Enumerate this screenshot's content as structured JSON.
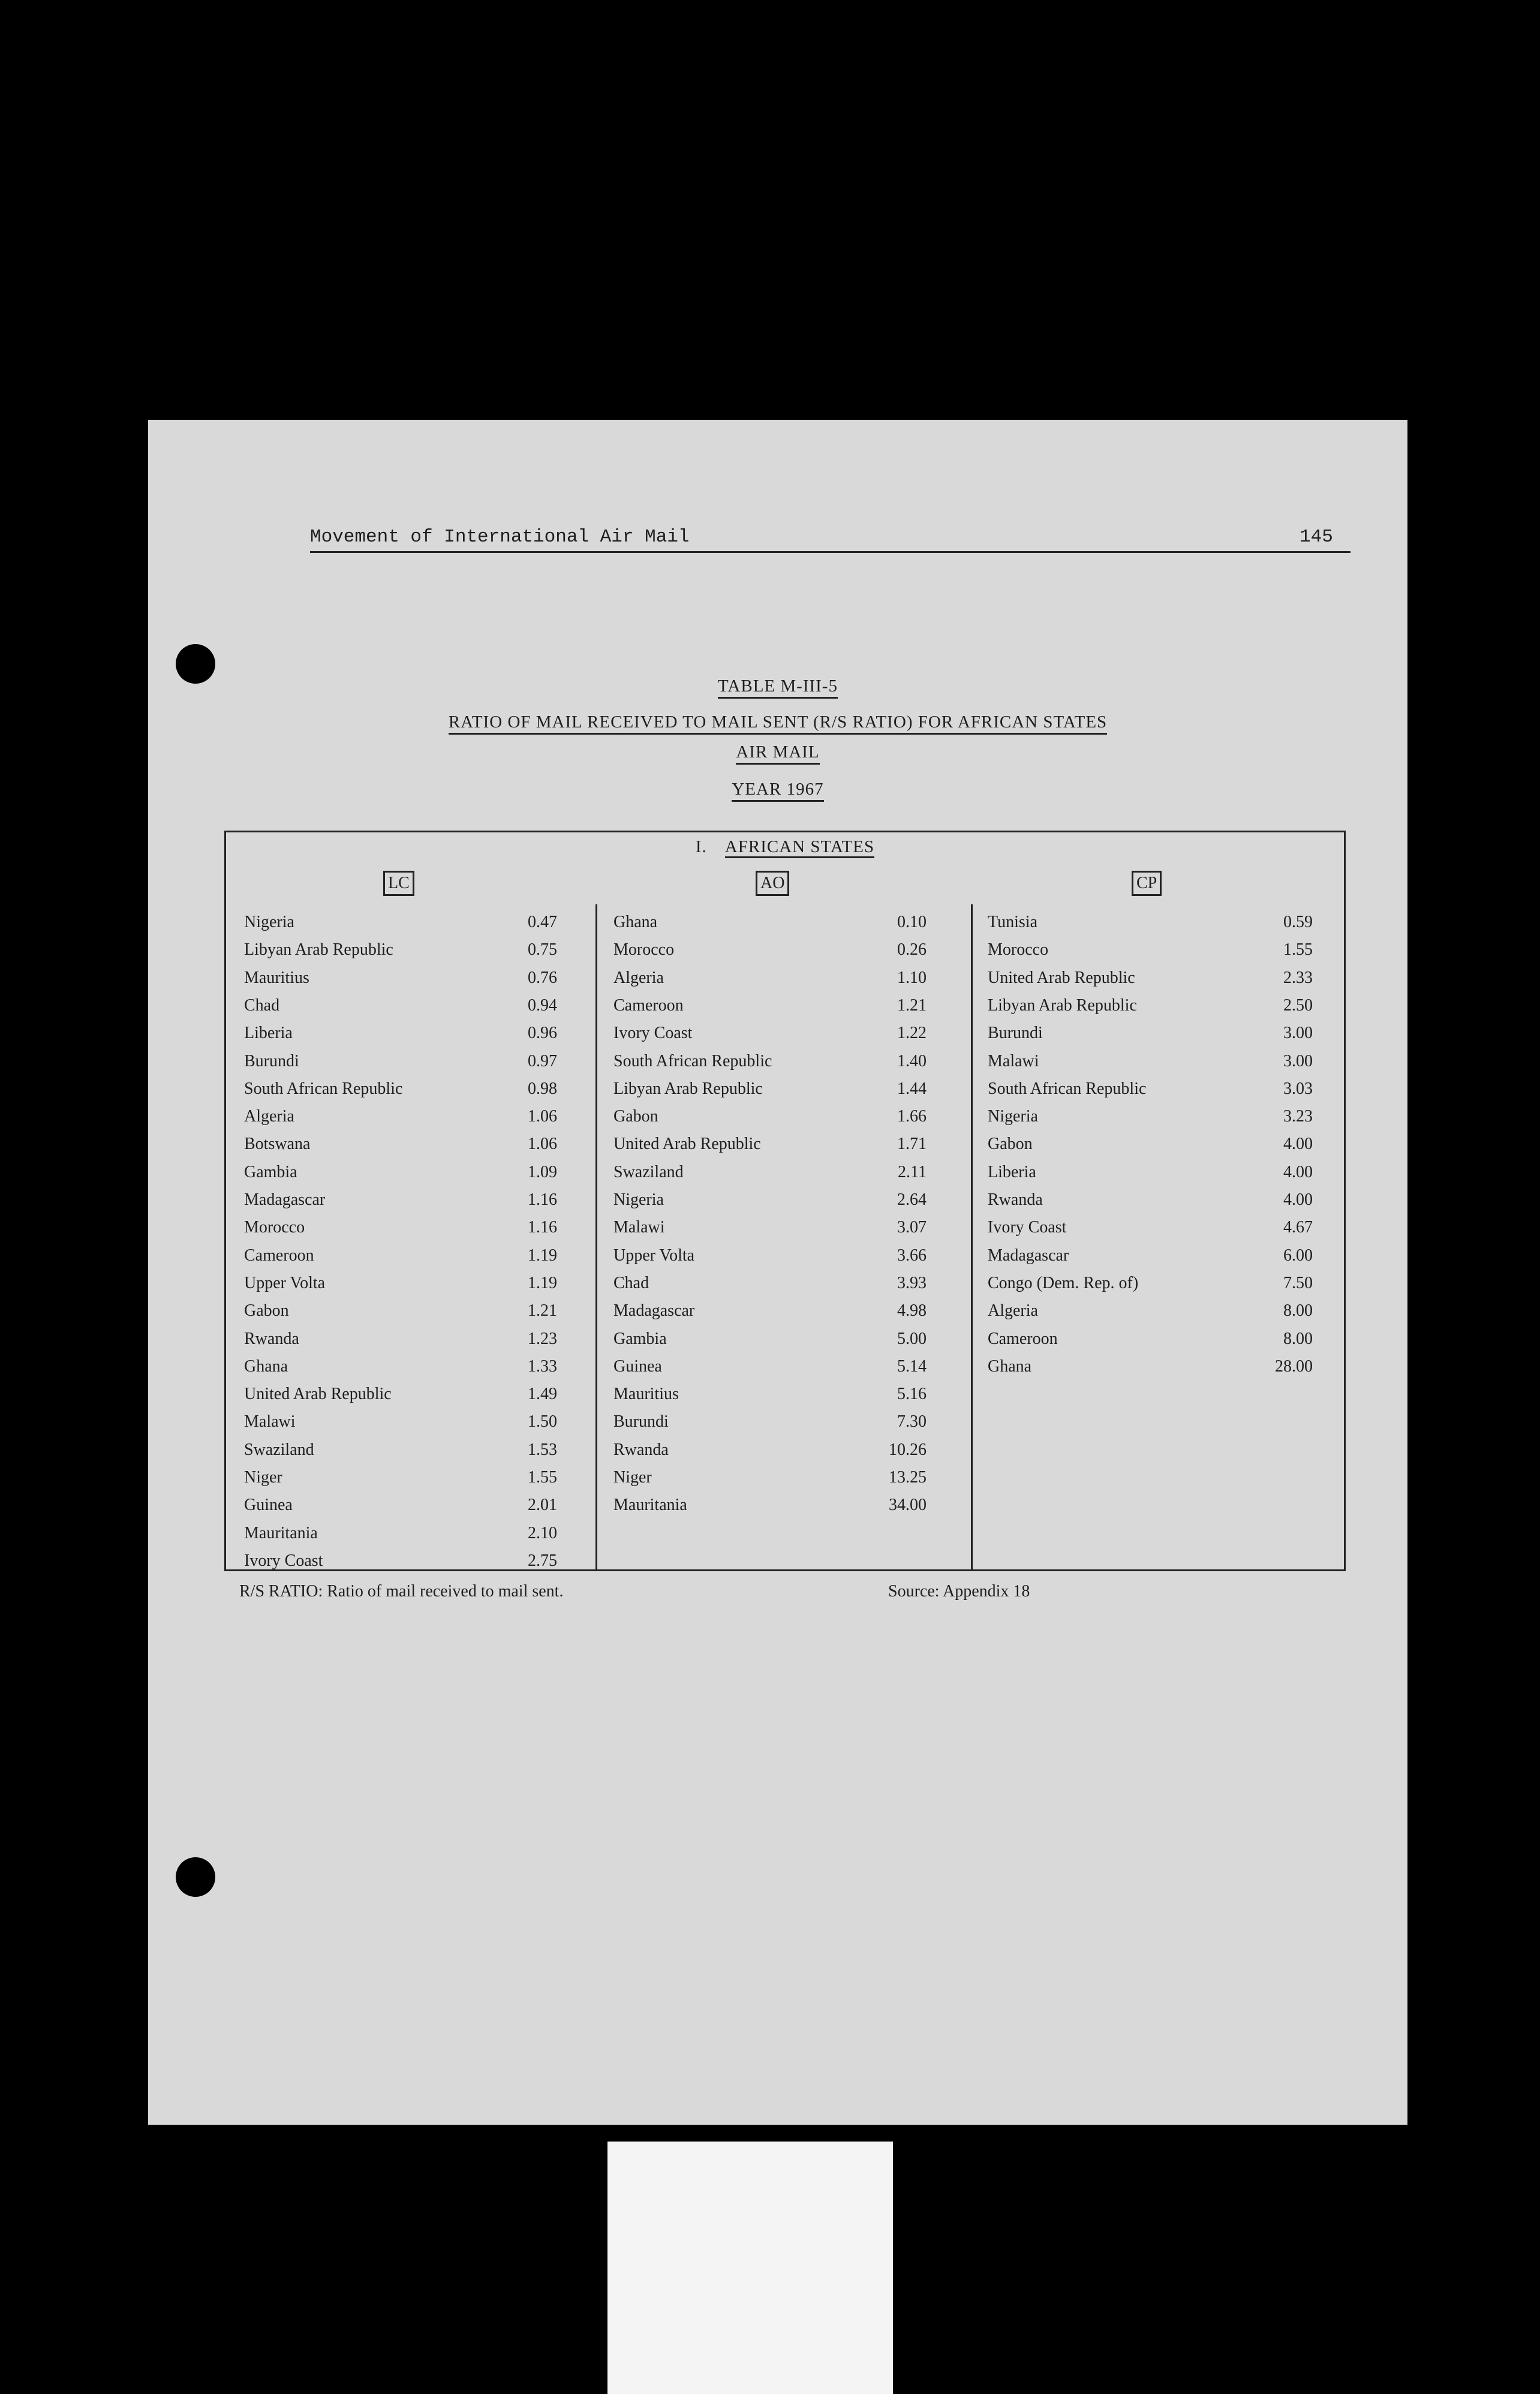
{
  "header": {
    "running_title": "Movement of International Air Mail",
    "page_number": "145"
  },
  "titles": {
    "table_id": "TABLE M-III-5",
    "subtitle": "RATIO OF MAIL RECEIVED TO MAIL SENT (R/S RATIO) FOR AFRICAN STATES",
    "mode": "AIR MAIL",
    "year": "YEAR 1967"
  },
  "table": {
    "section_number": "I.",
    "section_title": "AFRICAN STATES",
    "columns": [
      {
        "label": "LC",
        "rows": [
          [
            "Nigeria",
            "0.47"
          ],
          [
            "Libyan Arab Republic",
            "0.75"
          ],
          [
            "Mauritius",
            "0.76"
          ],
          [
            "Chad",
            "0.94"
          ],
          [
            "Liberia",
            "0.96"
          ],
          [
            "Burundi",
            "0.97"
          ],
          [
            "South African Republic",
            "0.98"
          ],
          [
            "Algeria",
            "1.06"
          ],
          [
            "Botswana",
            "1.06"
          ],
          [
            "Gambia",
            "1.09"
          ],
          [
            "Madagascar",
            "1.16"
          ],
          [
            "Morocco",
            "1.16"
          ],
          [
            "Cameroon",
            "1.19"
          ],
          [
            "Upper Volta",
            "1.19"
          ],
          [
            "Gabon",
            "1.21"
          ],
          [
            "Rwanda",
            "1.23"
          ],
          [
            "Ghana",
            "1.33"
          ],
          [
            "United Arab Republic",
            "1.49"
          ],
          [
            "Malawi",
            "1.50"
          ],
          [
            "Swaziland",
            "1.53"
          ],
          [
            "Niger",
            "1.55"
          ],
          [
            "Guinea",
            "2.01"
          ],
          [
            "Mauritania",
            "2.10"
          ],
          [
            "Ivory Coast",
            "2.75"
          ]
        ]
      },
      {
        "label": "AO",
        "rows": [
          [
            "Ghana",
            "0.10"
          ],
          [
            "Morocco",
            "0.26"
          ],
          [
            "Algeria",
            "1.10"
          ],
          [
            "Cameroon",
            "1.21"
          ],
          [
            "Ivory Coast",
            "1.22"
          ],
          [
            "South African Republic",
            "1.40"
          ],
          [
            "Libyan Arab Republic",
            "1.44"
          ],
          [
            "Gabon",
            "1.66"
          ],
          [
            "United Arab Republic",
            "1.71"
          ],
          [
            "Swaziland",
            "2.11"
          ],
          [
            "Nigeria",
            "2.64"
          ],
          [
            "Malawi",
            "3.07"
          ],
          [
            "Upper Volta",
            "3.66"
          ],
          [
            "Chad",
            "3.93"
          ],
          [
            "Madagascar",
            "4.98"
          ],
          [
            "Gambia",
            "5.00"
          ],
          [
            "Guinea",
            "5.14"
          ],
          [
            "Mauritius",
            "5.16"
          ],
          [
            "Burundi",
            "7.30"
          ],
          [
            "Rwanda",
            "10.26"
          ],
          [
            "Niger",
            "13.25"
          ],
          [
            "Mauritania",
            "34.00"
          ]
        ]
      },
      {
        "label": "CP",
        "rows": [
          [
            "Tunisia",
            "0.59"
          ],
          [
            "Morocco",
            "1.55"
          ],
          [
            "United Arab Republic",
            "2.33"
          ],
          [
            "Libyan Arab Republic",
            "2.50"
          ],
          [
            "Burundi",
            "3.00"
          ],
          [
            "Malawi",
            "3.00"
          ],
          [
            "South African Republic",
            "3.03"
          ],
          [
            "Nigeria",
            "3.23"
          ],
          [
            "Gabon",
            "4.00"
          ],
          [
            "Liberia",
            "4.00"
          ],
          [
            "Rwanda",
            "4.00"
          ],
          [
            "Ivory Coast",
            "4.67"
          ],
          [
            "Madagascar",
            "6.00"
          ],
          [
            "Congo (Dem. Rep. of)",
            "7.50"
          ],
          [
            "Algeria",
            "8.00"
          ],
          [
            "Cameroon",
            "8.00"
          ],
          [
            "Ghana",
            "28.00"
          ]
        ]
      }
    ]
  },
  "footnote": "R/S RATIO:  Ratio of mail received to mail sent.",
  "source": "Source:  Appendix 18"
}
